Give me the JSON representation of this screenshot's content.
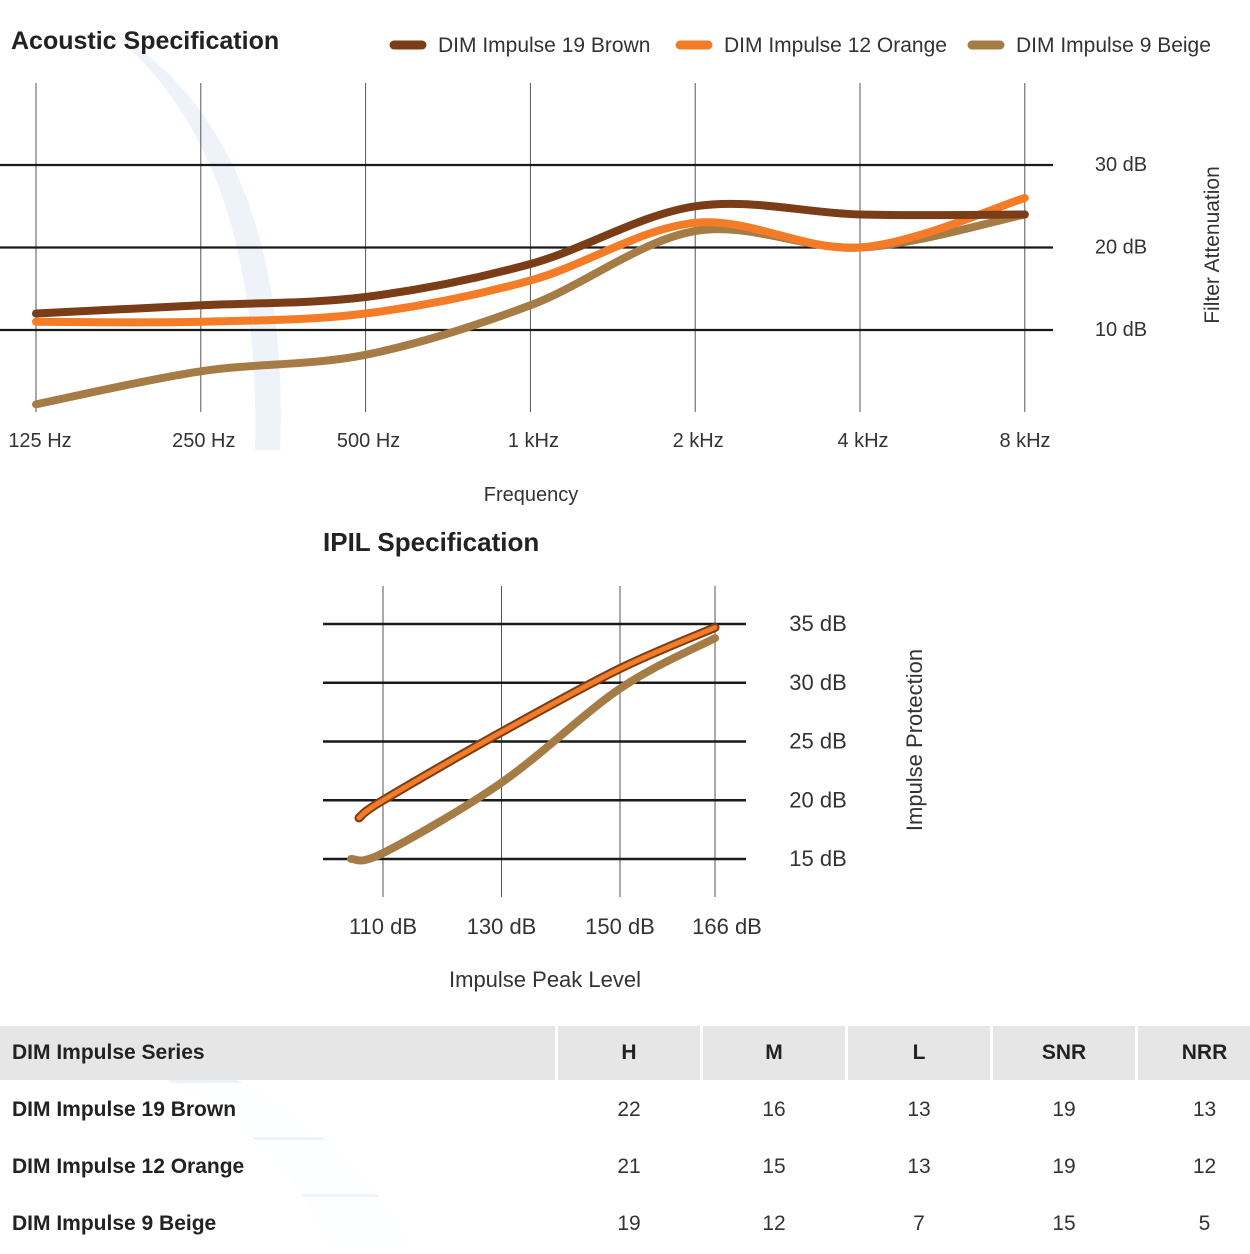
{
  "chart_data": [
    {
      "type": "line",
      "title": "Acoustic Specification",
      "xlabel": "Frequency",
      "ylabel": "Filter Attenuation",
      "categories": [
        "125 Hz",
        "250 Hz",
        "500 Hz",
        "1 kHz",
        "2 kHz",
        "4 kHz",
        "8 kHz"
      ],
      "y_ticks": [
        10,
        20,
        30
      ],
      "y_tick_labels": [
        "10 dB",
        "20 dB",
        "30 dB"
      ],
      "ylim": [
        0,
        35
      ],
      "legend_position": "top-right",
      "series": [
        {
          "name": "DIM Impulse 19 Brown",
          "color": "#7a3d17",
          "values": [
            12,
            13,
            14,
            18,
            25,
            24,
            24
          ]
        },
        {
          "name": "DIM Impulse 12 Orange",
          "color": "#f47c26",
          "values": [
            11,
            11,
            12,
            16,
            23,
            20,
            26
          ]
        },
        {
          "name": "DIM Impulse 9 Beige",
          "color": "#a57c45",
          "values": [
            1,
            5,
            7,
            13,
            22,
            20,
            24
          ]
        }
      ]
    },
    {
      "type": "line",
      "title": "IPIL Specification",
      "xlabel": "Impulse Peak Level",
      "ylabel": "Impulse Protection",
      "x_ticks": [
        110,
        130,
        150,
        166
      ],
      "x_tick_labels": [
        "110 dB",
        "130 dB",
        "150 dB",
        "166 dB"
      ],
      "y_ticks": [
        15,
        20,
        25,
        30,
        35
      ],
      "y_tick_labels": [
        "15 dB",
        "20 dB",
        "25 dB",
        "30 dB",
        "35 dB"
      ],
      "xlim": [
        101,
        172
      ],
      "ylim": [
        13.5,
        35.5
      ],
      "series": [
        {
          "name": "DIM Impulse 19 Brown",
          "color": "#7a3d17",
          "x": [
            106,
            110,
            130,
            150,
            166
          ],
          "y": [
            18.5,
            20,
            25.8,
            31.2,
            34.7
          ]
        },
        {
          "name": "DIM Impulse 12 Orange",
          "color": "#f47c26",
          "x": [
            106,
            110,
            130,
            150,
            166
          ],
          "y": [
            18.5,
            20,
            25.8,
            31.2,
            34.7
          ]
        },
        {
          "name": "DIM Impulse 9 Beige",
          "color": "#a57c45",
          "x": [
            104,
            110,
            130,
            150,
            166
          ],
          "y": [
            15,
            15.5,
            21.5,
            29.5,
            33.8
          ]
        }
      ]
    }
  ],
  "table": {
    "headers": [
      "DIM Impulse Series",
      "H",
      "M",
      "L",
      "SNR",
      "NRR"
    ],
    "rows": [
      {
        "name": "DIM Impulse 19 Brown",
        "values": [
          "22",
          "16",
          "13",
          "19",
          "13"
        ]
      },
      {
        "name": "DIM Impulse 12 Orange",
        "values": [
          "21",
          "15",
          "13",
          "19",
          "12"
        ]
      },
      {
        "name": "DIM Impulse 9 Beige",
        "values": [
          "19",
          "12",
          "7",
          "15",
          "5"
        ]
      }
    ]
  },
  "colors": {
    "grid": "#1a1a1a",
    "header_bg": "#e6e6e6",
    "decor": "#eef3fa"
  }
}
